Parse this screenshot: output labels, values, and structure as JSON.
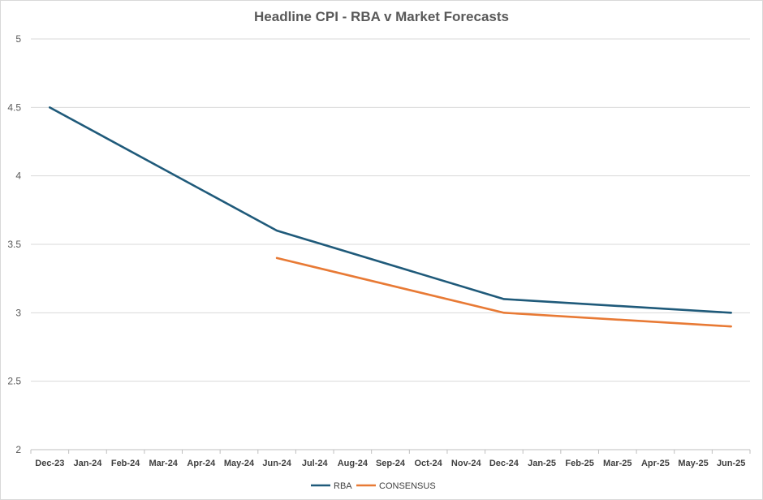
{
  "chart_data": {
    "type": "line",
    "title": "Headline CPI - RBA v Market Forecasts",
    "xlabel": "",
    "ylabel": "",
    "categories": [
      "Dec-23",
      "Jan-24",
      "Feb-24",
      "Mar-24",
      "Apr-24",
      "May-24",
      "Jun-24",
      "Jul-24",
      "Aug-24",
      "Sep-24",
      "Oct-24",
      "Nov-24",
      "Dec-24",
      "Jan-25",
      "Feb-25",
      "Mar-25",
      "Apr-25",
      "May-25",
      "Jun-25"
    ],
    "ylim": [
      2,
      5
    ],
    "yticks": [
      "2",
      "2.5",
      "3",
      "3.5",
      "4",
      "4.5",
      "5"
    ],
    "grid": true,
    "legend_position": "bottom",
    "series": [
      {
        "name": "RBA",
        "color": "#1f5a7a",
        "values": [
          4.5,
          null,
          null,
          null,
          null,
          null,
          3.6,
          null,
          null,
          null,
          null,
          null,
          3.1,
          null,
          null,
          null,
          null,
          null,
          3.0
        ]
      },
      {
        "name": "CONSENSUS",
        "color": "#e87a35",
        "values": [
          null,
          null,
          null,
          null,
          null,
          null,
          3.4,
          null,
          null,
          null,
          null,
          null,
          3.0,
          null,
          null,
          null,
          null,
          null,
          2.9
        ]
      }
    ]
  }
}
